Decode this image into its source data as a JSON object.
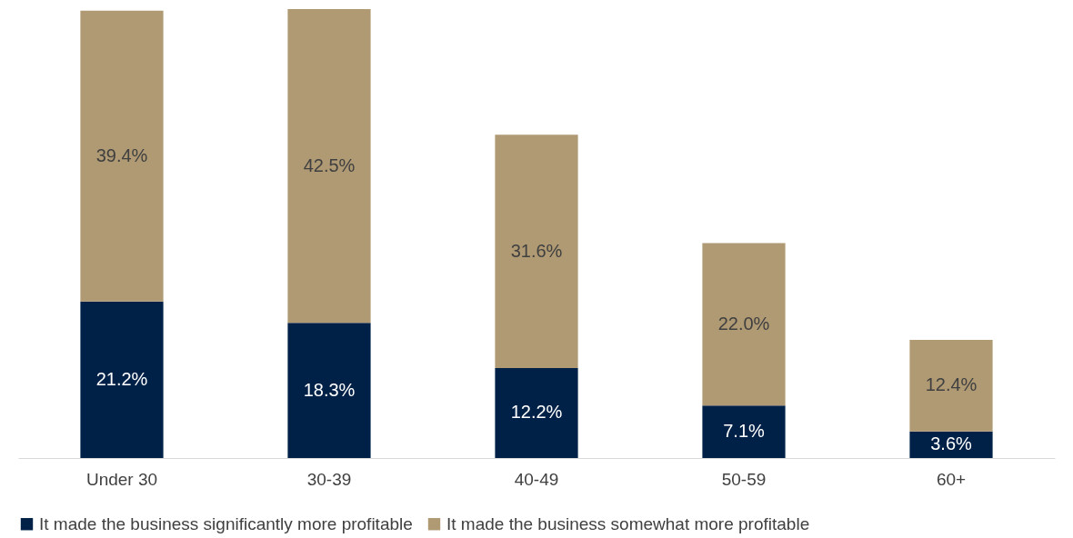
{
  "chart_data": {
    "type": "bar",
    "stacked": true,
    "legend": "bottom",
    "grid": false,
    "tick_labels": "x",
    "categories": [
      "Under 30",
      "30-39",
      "40-49",
      "50-59",
      "60+"
    ],
    "series": [
      {
        "name": "It made the business significantly more profitable",
        "color": "#002147",
        "values": [
          21.2,
          18.3,
          12.2,
          7.1,
          3.6
        ],
        "value_labels": [
          "21.2%",
          "18.3%",
          "12.2%",
          "7.1%",
          "3.6%"
        ]
      },
      {
        "name": "It made the business somewhat more profitable",
        "color": "#b09a74",
        "values": [
          39.4,
          42.5,
          31.6,
          22.0,
          12.4
        ],
        "value_labels": [
          "39.4%",
          "42.5%",
          "31.6%",
          "22.0%",
          "12.4%"
        ]
      }
    ]
  }
}
